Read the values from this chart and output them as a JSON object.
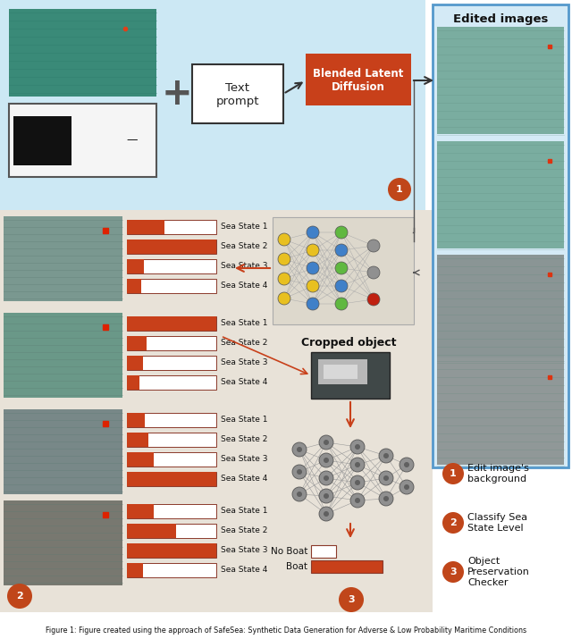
{
  "bg_top": "#cce8f4",
  "bg_bottom": "#e8e2d8",
  "orange_btn": "#c8401a",
  "bar_orange": "#c8401a",
  "bar_outline": "#8b3a2a",
  "figsize": [
    6.4,
    7.15
  ],
  "dpi": 100,
  "section1_labels": [
    "Sea State 1",
    "Sea State 2",
    "Sea State 3",
    "Sea State 4"
  ],
  "group1_bars": [
    0.42,
    1.0,
    0.19,
    0.16
  ],
  "group2_bars": [
    1.0,
    0.22,
    0.18,
    0.14
  ],
  "group3_bars": [
    0.2,
    0.24,
    0.3,
    1.0
  ],
  "group4_bars": [
    0.3,
    0.55,
    1.0,
    0.18
  ],
  "blended_latent_text": "Blended Latent\nDiffusion",
  "text_prompt": "Text\nprompt",
  "edited_images": "Edited images",
  "cropped_object": "Cropped object",
  "no_boat": "No Boat",
  "boat": "Boat",
  "label1": "Edit image's\nbackground",
  "label2": "Classify Sea\nState Level",
  "label3": "Object\nPreservation\nChecker",
  "circle_num_color": "#c0461a",
  "node_yellow": "#e8c020",
  "node_green": "#60b840",
  "node_blue": "#4080c8",
  "node_red": "#c02010",
  "node_gray": "#909090",
  "node_dark": "#606060"
}
